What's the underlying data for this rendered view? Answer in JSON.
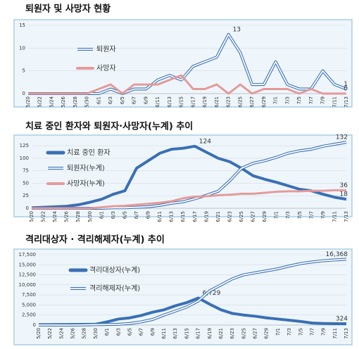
{
  "chart_data": [
    {
      "type": "line",
      "title": "퇴원자 및 사망자 현황",
      "categories": [
        "5/20",
        "5/22",
        "5/24",
        "5/26",
        "5/28",
        "5/30",
        "6/1",
        "6/3",
        "6/5",
        "6/7",
        "6/9",
        "6/11",
        "6/13",
        "6/15",
        "6/17",
        "6/19",
        "6/21",
        "6/23",
        "6/25",
        "6/27",
        "6/29",
        "7/1",
        "7/3",
        "7/5",
        "7/7",
        "7/9",
        "7/11",
        "7/13"
      ],
      "ylim": [
        0,
        15
      ],
      "yticks": [
        0,
        5,
        10,
        15
      ],
      "series": [
        {
          "name": "퇴원자",
          "color": "#3a6fb5",
          "style": "double",
          "label_at": [
            17,
            27
          ],
          "values": [
            0,
            0,
            0,
            0,
            0,
            0,
            0,
            1,
            0,
            1,
            1,
            3,
            4,
            3,
            6,
            7,
            8,
            13,
            9,
            2,
            2,
            7,
            2,
            1,
            1,
            5,
            2,
            1
          ]
        },
        {
          "name": "사망자",
          "color": "#e49a9a",
          "style": "solid",
          "label_at": [
            27
          ],
          "values": [
            0,
            0,
            0,
            0,
            0,
            0,
            1,
            2,
            0,
            2,
            2,
            2,
            3,
            4,
            1,
            1,
            2,
            0,
            2,
            0,
            1,
            1,
            1,
            0,
            1,
            0,
            0,
            0
          ]
        }
      ]
    },
    {
      "type": "line",
      "title": "치료 중인 환자와 퇴원자·사망자(누계) 추이",
      "categories": [
        "5/20",
        "5/22",
        "5/24",
        "5/26",
        "5/28",
        "5/30",
        "6/1",
        "6/3",
        "6/5",
        "6/7",
        "6/9",
        "6/11",
        "6/13",
        "6/15",
        "6/17",
        "6/19",
        "6/21",
        "6/23",
        "6/25",
        "6/27",
        "6/29",
        "7/1",
        "7/3",
        "7/5",
        "7/7",
        "7/9",
        "7/11",
        "7/13"
      ],
      "ylim": [
        0,
        135
      ],
      "yticks": [
        0,
        25,
        50,
        75,
        100,
        125
      ],
      "series": [
        {
          "name": "치료 중인 환자",
          "color": "#3a6fb5",
          "style": "thick",
          "label_at": [
            14,
            27
          ],
          "values": [
            1,
            2,
            3,
            4,
            7,
            12,
            18,
            28,
            35,
            80,
            95,
            110,
            118,
            120,
            124,
            112,
            100,
            93,
            80,
            65,
            58,
            52,
            45,
            38,
            35,
            28,
            22,
            18
          ]
        },
        {
          "name": "퇴원자(누계)",
          "color": "#3a6fb5",
          "style": "double",
          "label_at": [
            27
          ],
          "values": [
            0,
            0,
            0,
            0,
            0,
            0,
            0,
            1,
            1,
            2,
            3,
            6,
            10,
            13,
            19,
            26,
            34,
            55,
            80,
            90,
            95,
            102,
            110,
            115,
            118,
            124,
            128,
            132
          ]
        },
        {
          "name": "사망자(누계)",
          "color": "#e49a9a",
          "style": "solid",
          "label_at": [
            27
          ],
          "values": [
            0,
            0,
            0,
            0,
            0,
            0,
            2,
            4,
            5,
            7,
            9,
            11,
            14,
            20,
            23,
            24,
            26,
            27,
            29,
            29,
            31,
            33,
            34,
            34,
            35,
            35,
            36,
            36
          ]
        }
      ]
    },
    {
      "type": "line",
      "title": "격리대상자 · 격리해제자(누계) 추이",
      "categories": [
        "5/20",
        "5/22",
        "5/24",
        "5/26",
        "5/28",
        "5/30",
        "6/1",
        "6/3",
        "6/5",
        "6/7",
        "6/9",
        "6/11",
        "6/13",
        "6/15",
        "6/17",
        "6/19",
        "6/21",
        "6/23",
        "6/25",
        "6/27",
        "6/29",
        "7/1",
        "7/3",
        "7/5",
        "7/7",
        "7/9",
        "7/11",
        "7/13"
      ],
      "ylim": [
        0,
        17500
      ],
      "yticks": [
        0,
        {
          "value": 2500,
          "label": "2,500"
        },
        {
          "value": 5000,
          "label": "5,000"
        },
        {
          "value": 7500,
          "label": "7,500"
        },
        {
          "value": 10000,
          "label": "10,000"
        },
        {
          "value": 12500,
          "label": "12,500"
        },
        {
          "value": 15000,
          "label": "15,000"
        },
        {
          "value": 17500,
          "label": "17,500"
        }
      ],
      "series": [
        {
          "name": "격리대상자(누계)",
          "color": "#3a6fb5",
          "style": "thick",
          "label_at": [
            14,
            27
          ],
          "values": [
            100,
            120,
            130,
            150,
            180,
            200,
            800,
            1500,
            1800,
            2400,
            3200,
            3800,
            4800,
            5600,
            6729,
            5200,
            3800,
            2900,
            2500,
            2200,
            1800,
            1500,
            1200,
            900,
            500,
            400,
            350,
            324
          ],
          "value_labels": {
            "14": "6,729",
            "27": "324"
          }
        },
        {
          "name": "격리해제자(누계)",
          "color": "#3a6fb5",
          "style": "double",
          "label_at": [
            27
          ],
          "values": [
            0,
            0,
            0,
            0,
            50,
            100,
            150,
            200,
            400,
            800,
            1400,
            2500,
            3500,
            4500,
            6000,
            8500,
            10000,
            11500,
            12500,
            13000,
            13500,
            14000,
            14700,
            15300,
            15700,
            16000,
            16200,
            16368
          ],
          "value_labels": {
            "27": "16,368"
          }
        }
      ]
    }
  ]
}
